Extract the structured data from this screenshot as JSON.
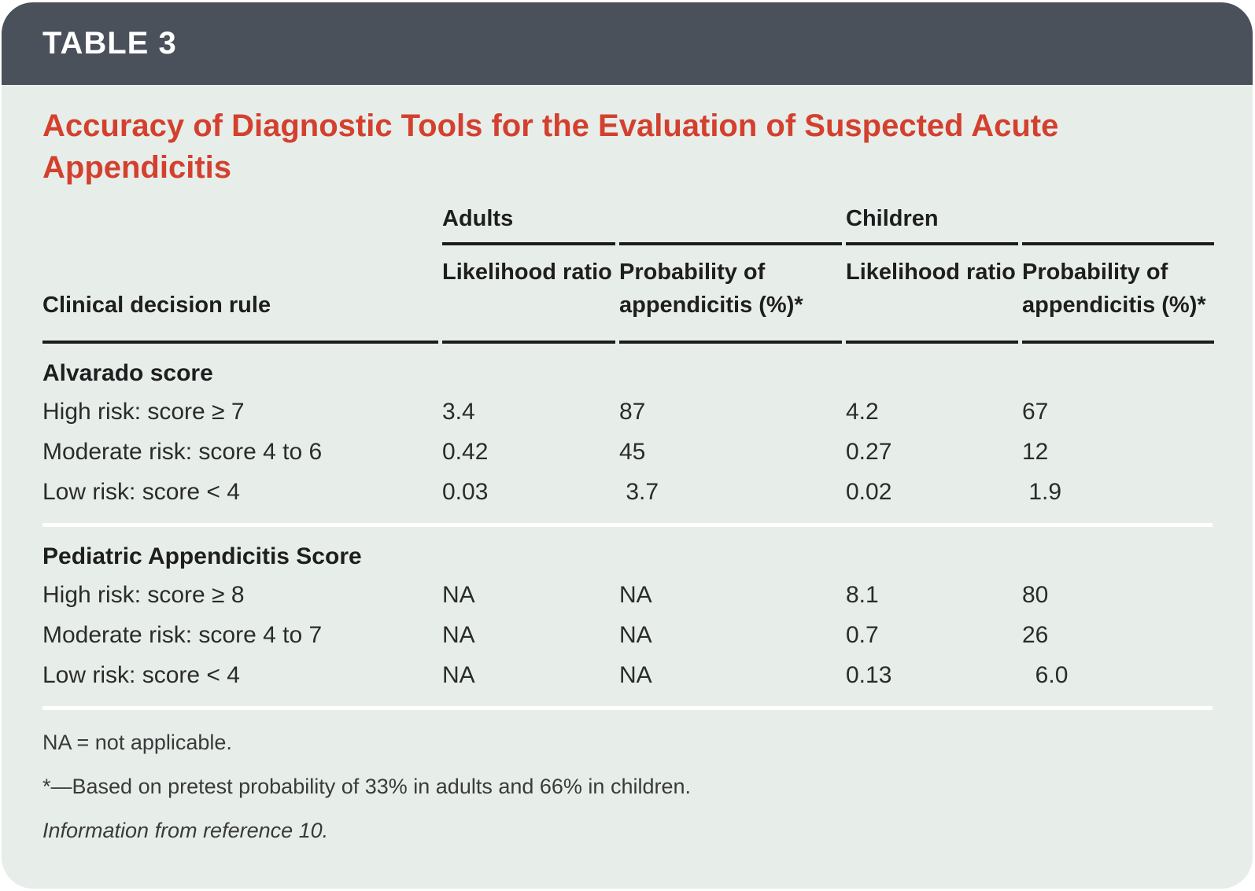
{
  "header": {
    "label": "TABLE 3"
  },
  "title": {
    "full": "Accuracy of Diagnostic Tools for the Evaluation of Suspected Acute Appendicitis",
    "line1": "Accuracy of Diagnostic Tools for the Evaluation of Suspected Acute",
    "line2": "Appendicitis"
  },
  "table": {
    "row_header": "Clinical decision rule",
    "groups": [
      {
        "label": "Adults"
      },
      {
        "label": "Children"
      }
    ],
    "subheaders": [
      "Likelihood ratio",
      "Probability of appendicitis (%)*",
      "Likelihood ratio",
      "Probability of appendicitis (%)*"
    ],
    "sections": [
      {
        "header": "Alvarado score",
        "rows": [
          {
            "label": "High risk: score ≥ 7",
            "cells": [
              "3.4",
              "87",
              "4.2",
              "67"
            ]
          },
          {
            "label": "Moderate risk: score 4 to 6",
            "cells": [
              "0.42",
              "45",
              "0.27",
              "12"
            ]
          },
          {
            "label": "Low risk: score < 4",
            "cells": [
              "0.03",
              " 3.7",
              "0.02",
              " 1.9"
            ]
          }
        ]
      },
      {
        "header": "Pediatric Appendicitis Score",
        "rows": [
          {
            "label": "High risk: score ≥ 8",
            "cells": [
              "NA",
              "NA",
              "8.1",
              "80"
            ]
          },
          {
            "label": "Moderate risk: score 4 to 7",
            "cells": [
              "NA",
              "NA",
              "0.7",
              "26"
            ]
          },
          {
            "label": "Low risk: score < 4",
            "cells": [
              "NA",
              "NA",
              "0.13",
              "  6.0"
            ]
          }
        ]
      }
    ]
  },
  "footnotes": {
    "abbreviation": "NA = not applicable.",
    "asterisk": "*—Based on pretest probability of 33% in adults and 66% in children.",
    "source": "Information from reference 10."
  },
  "colors": {
    "header_bar": "#4a515b",
    "card_background": "#e7eeea",
    "title_red": "#d4402e",
    "rule_black": "#1c1c1c",
    "body_text": "#2b2b2b"
  }
}
